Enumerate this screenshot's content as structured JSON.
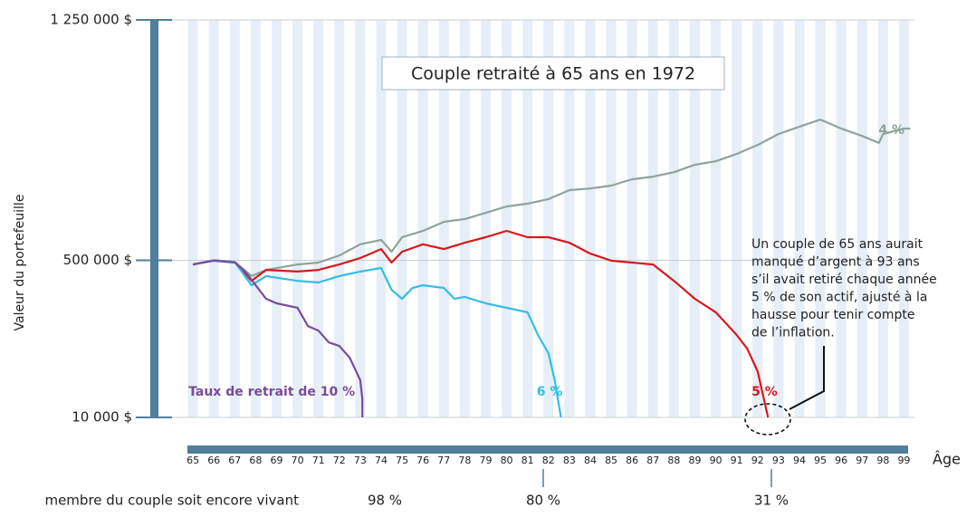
{
  "chart_data": {
    "type": "line",
    "title": "Couple retraité à 65 ans en 1972",
    "ylabel": "Valeur du portefeuille",
    "xlabel": "Âge",
    "xlim": [
      64,
      99.5
    ],
    "xticks": [
      65,
      66,
      67,
      68,
      69,
      70,
      71,
      72,
      73,
      74,
      75,
      76,
      77,
      78,
      79,
      80,
      81,
      82,
      83,
      84,
      85,
      86,
      87,
      88,
      89,
      90,
      91,
      92,
      93,
      94,
      95,
      96,
      97,
      98,
      99
    ],
    "ylim": [
      10000,
      1250000
    ],
    "yticks": [
      {
        "value": 10000,
        "label": "10 000 $"
      },
      {
        "value": 500000,
        "label": "500 000 $"
      },
      {
        "value": 1250000,
        "label": "1 250 000 $"
      }
    ],
    "grid": true,
    "series": [
      {
        "name": "4 %",
        "color": "#8fa49a",
        "x": [
          65,
          66,
          67,
          67.8,
          68.5,
          70,
          71,
          72,
          73,
          74,
          74.5,
          75,
          76,
          77,
          78,
          79,
          80,
          81,
          82,
          83,
          84,
          85,
          86,
          87,
          88,
          89,
          90,
          91,
          92,
          93,
          94,
          95,
          96,
          97,
          97.8,
          98,
          99,
          99.3
        ],
        "values": [
          487000,
          500000,
          495000,
          451000,
          470000,
          487000,
          493000,
          515000,
          550000,
          564000,
          527000,
          572000,
          592000,
          620000,
          629000,
          648000,
          668000,
          677000,
          691000,
          719000,
          724000,
          733000,
          753000,
          761000,
          775000,
          798000,
          809000,
          832000,
          860000,
          894000,
          917000,
          939000,
          911000,
          888000,
          866000,
          894000,
          911000,
          911000
        ]
      },
      {
        "name": "5 %",
        "color": "#d7191c",
        "x": [
          65,
          66,
          67,
          67.8,
          68.5,
          70,
          71,
          72,
          73,
          74,
          74.5,
          75,
          76,
          77,
          78,
          79,
          80,
          81,
          82,
          83,
          84,
          85,
          86,
          87,
          88,
          89,
          90,
          91,
          91.5,
          92,
          92.5
        ],
        "values": [
          487000,
          500000,
          495000,
          436000,
          470000,
          465000,
          470000,
          487000,
          507000,
          535000,
          493000,
          527000,
          550000,
          535000,
          555000,
          572000,
          592000,
          572000,
          572000,
          555000,
          521000,
          499000,
          493000,
          487000,
          436000,
          380000,
          338000,
          267000,
          225000,
          154000,
          10000
        ]
      },
      {
        "name": "6 %",
        "color": "#33bde8",
        "x": [
          65,
          66,
          67,
          67.8,
          68.5,
          70,
          71,
          72,
          73,
          74,
          74.5,
          75,
          75.5,
          76,
          77,
          77.5,
          78,
          79,
          80,
          81,
          81.5,
          82,
          82.3,
          82.6
        ],
        "values": [
          487000,
          500000,
          495000,
          422000,
          451000,
          436000,
          431000,
          451000,
          465000,
          476000,
          408000,
          380000,
          414000,
          422000,
          414000,
          380000,
          386000,
          366000,
          352000,
          338000,
          267000,
          210000,
          126000,
          10000
        ]
      },
      {
        "name": "Taux de retrait de 10 %",
        "color": "#7a4b9c",
        "x": [
          65,
          66,
          67,
          67.5,
          68,
          68.5,
          69,
          70,
          70.5,
          71,
          71.5,
          72,
          72.5,
          73,
          73.1,
          73.1
        ],
        "values": [
          487000,
          499000,
          493000,
          465000,
          422000,
          380000,
          366000,
          352000,
          295000,
          281000,
          244000,
          233000,
          196000,
          126000,
          69000,
          10000
        ]
      }
    ],
    "annotation": [
      "Un couple de 65 ans aurait",
      "manqué d’argent à 93 ans",
      "s’il avait retiré chaque année",
      "5 % de son actif, ajusté à la",
      "hausse pour tenir compte",
      "de l’inflation."
    ],
    "survival_label": "membre du couple soit encore vivant",
    "survival_values": [
      "98 %",
      "80 %",
      "31 %"
    ]
  }
}
